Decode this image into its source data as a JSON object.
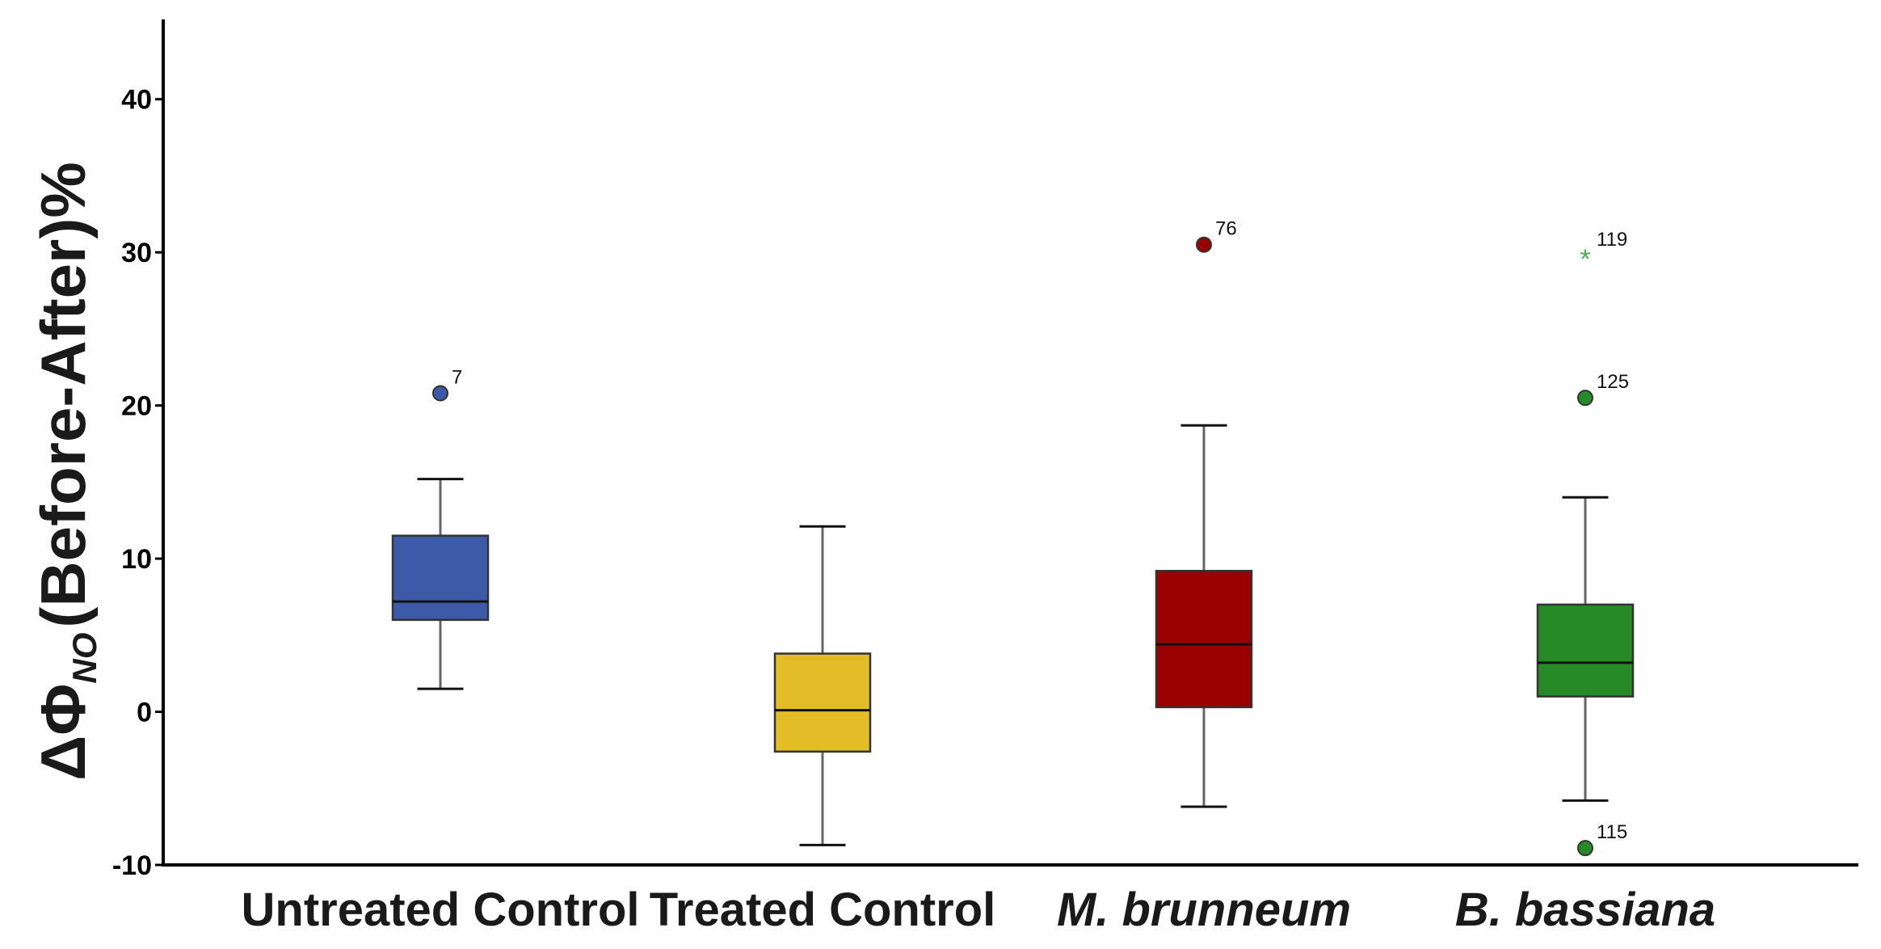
{
  "chart_data": {
    "type": "boxplot",
    "title": "",
    "xlabel": "",
    "ylabel": {
      "prefix": "ΔΦ",
      "subscript": "NO",
      "suffix": "(Before-After)%"
    },
    "ylim": [
      -10,
      45
    ],
    "yticks": [
      -10,
      0,
      10,
      20,
      30,
      40
    ],
    "grid": false,
    "categories": [
      {
        "label": "Untreated Control",
        "italic": false,
        "color": "#3c5aa8",
        "whisker_low": 1.5,
        "q1": 6,
        "median": 7.2,
        "q3": 11.5,
        "whisker_high": 15.2,
        "outliers": [
          {
            "value": 20.8,
            "label": "7",
            "marker": "circle"
          }
        ]
      },
      {
        "label": "Treated Control",
        "italic": false,
        "color": "#e2bd27",
        "whisker_low": -8.7,
        "q1": -2.6,
        "median": 0.1,
        "q3": 3.8,
        "whisker_high": 12.1,
        "outliers": []
      },
      {
        "label": "M. brunneum",
        "italic": true,
        "color": "#9b0000",
        "whisker_low": -6.2,
        "q1": 0.3,
        "median": 4.4,
        "q3": 9.2,
        "whisker_high": 18.7,
        "outliers": [
          {
            "value": 30.5,
            "label": "76",
            "marker": "circle"
          }
        ]
      },
      {
        "label": "B. bassiana",
        "italic": true,
        "color": "#268a27",
        "whisker_low": -5.8,
        "q1": 1,
        "median": 3.2,
        "q3": 7,
        "whisker_high": 14,
        "outliers": [
          {
            "value": 29.8,
            "label": "119",
            "marker": "star"
          },
          {
            "value": 20.5,
            "label": "125",
            "marker": "circle"
          },
          {
            "value": -8.9,
            "label": "115",
            "marker": "circle"
          }
        ]
      }
    ]
  }
}
